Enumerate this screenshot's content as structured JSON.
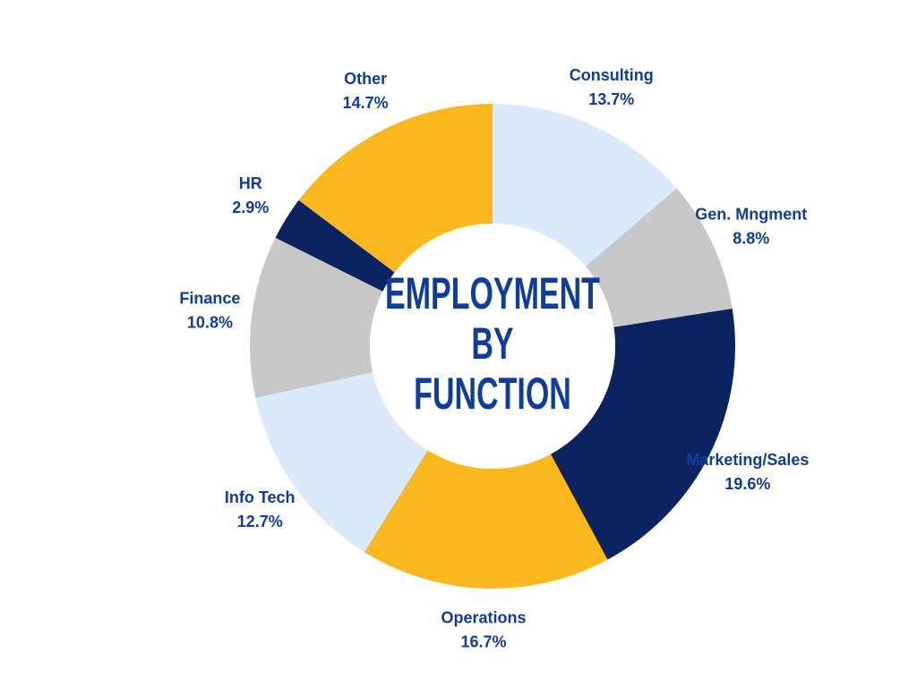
{
  "chart_data": {
    "type": "donut",
    "title": "EMPLOYMENT BY FUNCTION",
    "categories": [
      "Consulting",
      "Gen. Mngment",
      "Marketing/Sales",
      "Operations",
      "Info Tech",
      "Finance",
      "HR",
      "Other"
    ],
    "values": [
      13.7,
      8.8,
      19.6,
      16.7,
      12.7,
      10.8,
      2.9,
      14.7
    ],
    "value_labels": [
      "13.7%",
      "8.8%",
      "19.6%",
      "16.7%",
      "12.7%",
      "10.8%",
      "2.9%",
      "14.7%"
    ],
    "colors": [
      "#dbeafb",
      "#c8c8c8",
      "#0b2360",
      "#fbb71e",
      "#dbeafb",
      "#c8c8c8",
      "#0b2360",
      "#fbb71e"
    ]
  }
}
